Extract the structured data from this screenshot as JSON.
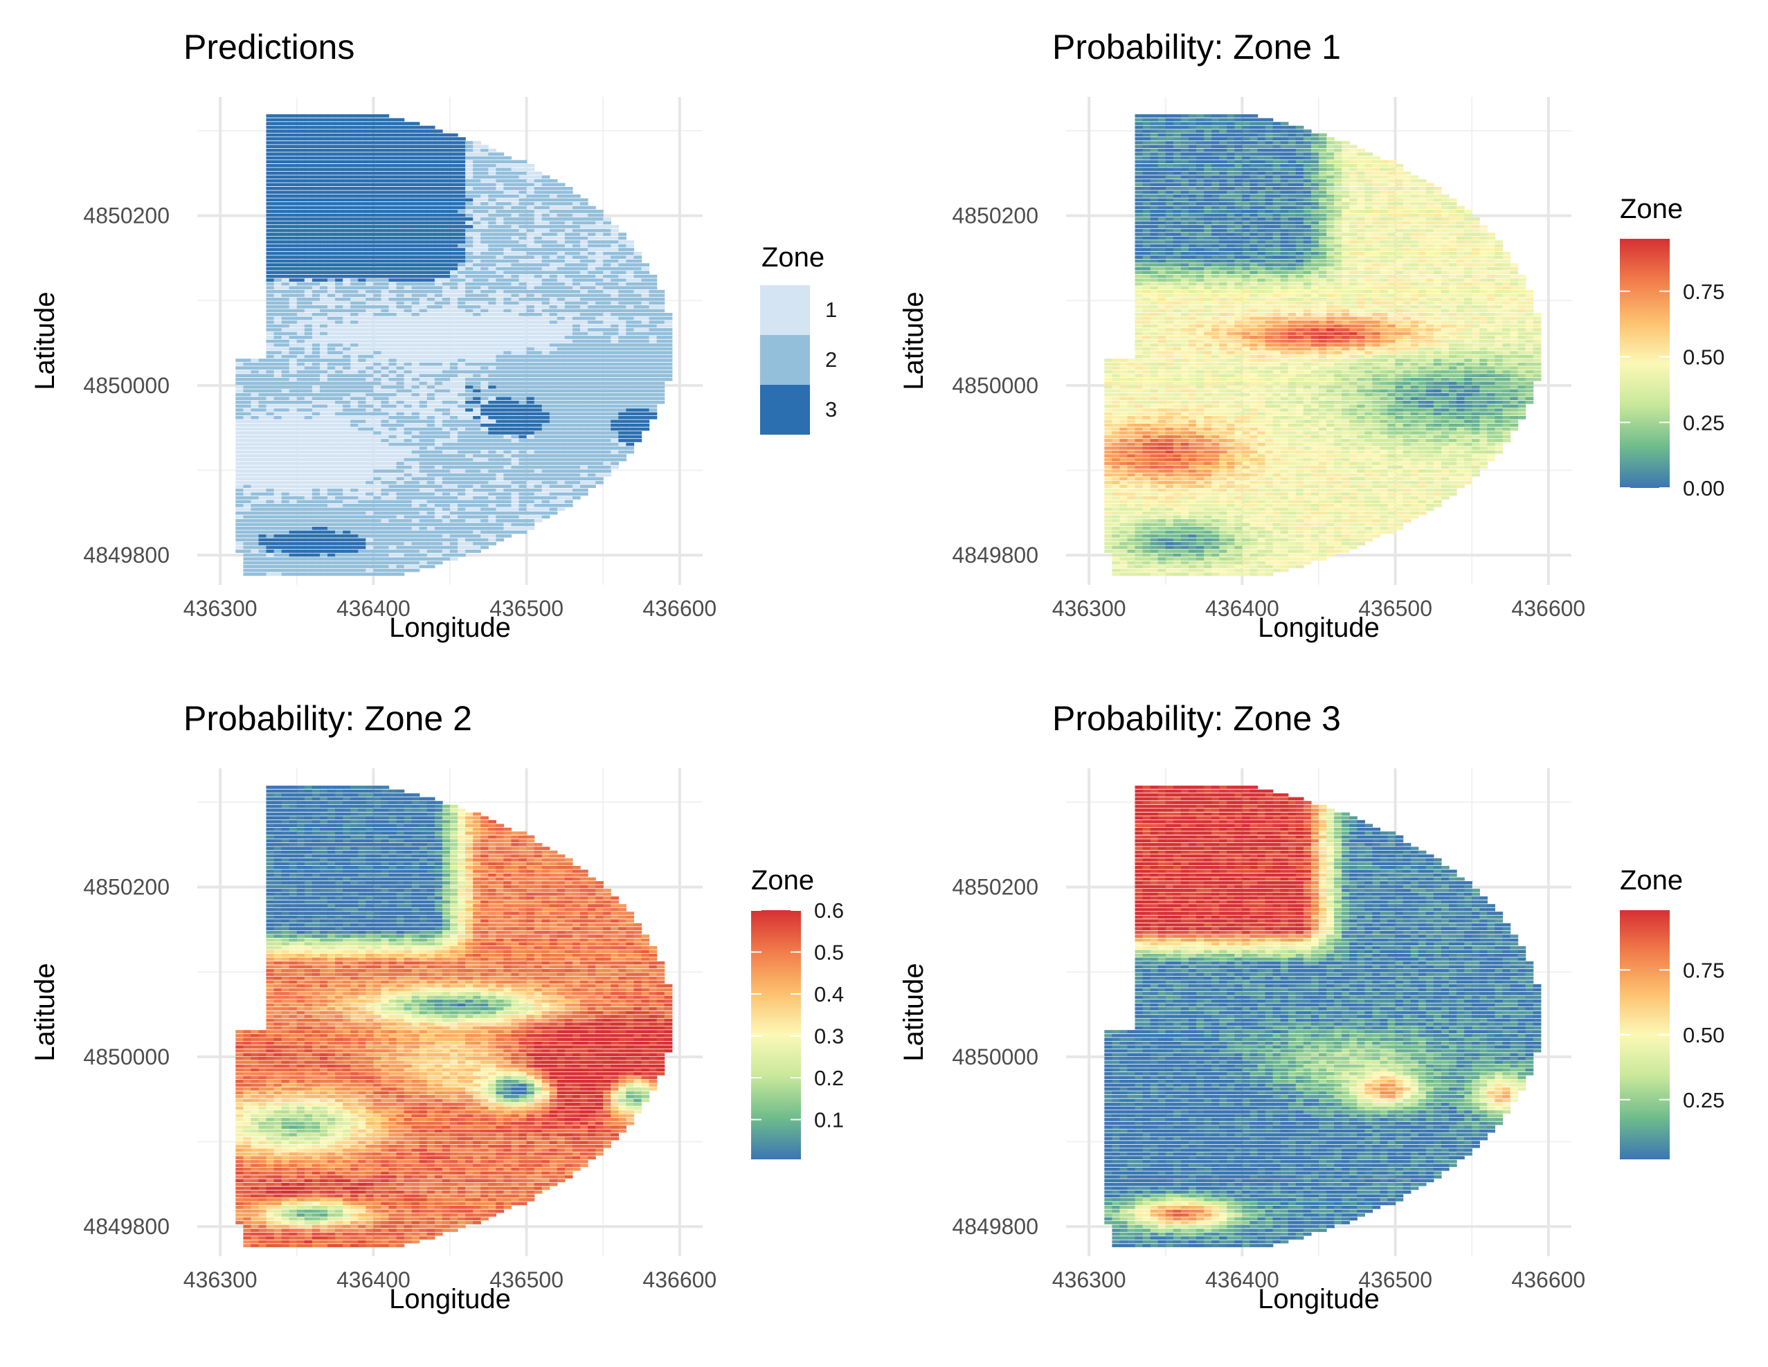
{
  "chart_data": [
    {
      "type": "heatmap",
      "title": "Predictions",
      "xlabel": "Longitude",
      "ylabel": "Latitude",
      "xlim": [
        436285,
        436615
      ],
      "ylim": [
        4849765,
        4850340
      ],
      "x_ticks": [
        "436300",
        "436400",
        "436500",
        "436600"
      ],
      "y_ticks": [
        "4849800",
        "4850000",
        "4850200"
      ],
      "grid": true,
      "legend": {
        "title": "Zone",
        "kind": "discrete",
        "position": "right",
        "labels": [
          "1",
          "2",
          "3"
        ],
        "colors": [
          "#d4e4f3",
          "#93bfdb",
          "#2b6fb0"
        ]
      },
      "variable": "predicted zone",
      "value_range": [
        1,
        3
      ],
      "regions": [
        {
          "area": "north block (lat > 4850130, lon < 436440)",
          "value": 3
        },
        {
          "area": "central band (lat 4850020-4850130)",
          "value": 1
        },
        {
          "area": "southeast area (lat 4849880-4850020, lon > 436440)",
          "value": 3
        },
        {
          "area": "west / southwest (lon < 436400, lat < 4850000)",
          "value": 1
        },
        {
          "area": "south strip (lat < 4849830, lon 436330-436390)",
          "value": 3
        },
        {
          "area": "transition zones",
          "value": 2
        }
      ]
    },
    {
      "type": "heatmap",
      "title": "Probability: Zone 1",
      "xlabel": "Longitude",
      "ylabel": "Latitude",
      "xlim": [
        436285,
        436615
      ],
      "ylim": [
        4849765,
        4850340
      ],
      "x_ticks": [
        "436300",
        "436400",
        "436500",
        "436600"
      ],
      "y_ticks": [
        "4849800",
        "4850000",
        "4850200"
      ],
      "grid": true,
      "legend": {
        "title": "Zone",
        "kind": "continuous",
        "position": "right",
        "labels": [
          "0.00",
          "0.25",
          "0.50",
          "0.75"
        ],
        "tick_values": [
          0,
          0.25,
          0.5,
          0.75
        ],
        "range": [
          0,
          0.95
        ]
      },
      "variable": "probability of zone 1",
      "value_range": [
        0,
        0.95
      ],
      "regions": [
        {
          "area": "north block",
          "value": 0.05
        },
        {
          "area": "central band",
          "value": 0.55
        },
        {
          "area": "hotspot near lon 436450, lat 4850060",
          "value": 0.9
        },
        {
          "area": "west block (lon < 436400, lat 4849880-4849960)",
          "value": 0.8
        },
        {
          "area": "southeast area",
          "value": 0.1
        },
        {
          "area": "south strip",
          "value": 0.05
        }
      ]
    },
    {
      "type": "heatmap",
      "title": "Probability: Zone 2",
      "xlabel": "Longitude",
      "ylabel": "Latitude",
      "xlim": [
        436285,
        436615
      ],
      "ylim": [
        4849765,
        4850340
      ],
      "x_ticks": [
        "436300",
        "436400",
        "436500",
        "436600"
      ],
      "y_ticks": [
        "4849800",
        "4850000",
        "4850200"
      ],
      "grid": true,
      "legend": {
        "title": "Zone",
        "kind": "continuous",
        "position": "right",
        "labels": [
          "0.1",
          "0.2",
          "0.3",
          "0.4",
          "0.5",
          "0.6"
        ],
        "tick_values": [
          0.1,
          0.2,
          0.3,
          0.4,
          0.5,
          0.6
        ],
        "range": [
          0.005,
          0.6
        ]
      },
      "variable": "probability of zone 2",
      "value_range": [
        0.005,
        0.6
      ],
      "regions": [
        {
          "area": "north block",
          "value": 0.05
        },
        {
          "area": "central / east",
          "value": 0.45
        },
        {
          "area": "southwest",
          "value": 0.48
        },
        {
          "area": "south strip",
          "value": 0.15
        }
      ]
    },
    {
      "type": "heatmap",
      "title": "Probability: Zone 3",
      "xlabel": "Longitude",
      "ylabel": "Latitude",
      "xlim": [
        436285,
        436615
      ],
      "ylim": [
        4849765,
        4850340
      ],
      "x_ticks": [
        "436300",
        "436400",
        "436500",
        "436600"
      ],
      "y_ticks": [
        "4849800",
        "4850000",
        "4850200"
      ],
      "grid": true,
      "legend": {
        "title": "Zone",
        "kind": "continuous",
        "position": "right",
        "labels": [
          "0.25",
          "0.50",
          "0.75"
        ],
        "tick_values": [
          0.25,
          0.5,
          0.75
        ],
        "range": [
          0.02,
          0.98
        ]
      },
      "variable": "probability of zone 3",
      "value_range": [
        0.02,
        0.98
      ],
      "regions": [
        {
          "area": "north block",
          "value": 0.95
        },
        {
          "area": "central band",
          "value": 0.1
        },
        {
          "area": "west (lon < 436400, lat < 4850000)",
          "value": 0.05
        },
        {
          "area": "patches near lon 436490 / 436570, lat 4849960",
          "value": 0.8
        },
        {
          "area": "south strip",
          "value": 0.85
        }
      ]
    }
  ]
}
